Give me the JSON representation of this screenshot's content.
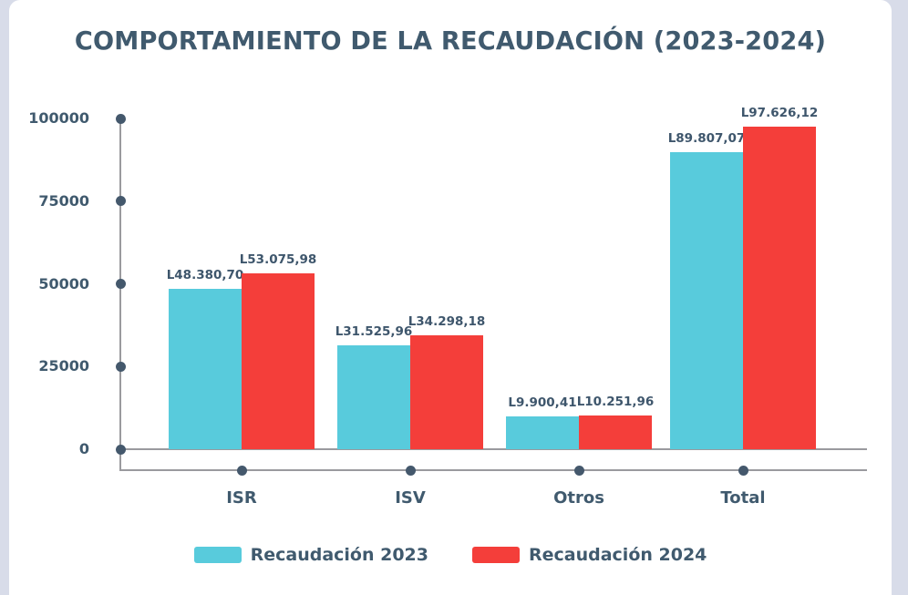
{
  "page": {
    "background": "#D8DCE9",
    "card_background": "#FFFFFF"
  },
  "chart_data": {
    "type": "bar",
    "title": "COMPORTAMIENTO DE LA RECAUDACIÓN (2023-2024)",
    "categories": [
      "ISR",
      "ISV",
      "Otros",
      "Total"
    ],
    "series": [
      {
        "name": "Recaudación 2023",
        "color": "#58CBDC",
        "values": [
          48380.7,
          31525.96,
          9900.41,
          89807.07
        ],
        "labels": [
          "L48.380,70",
          "L31.525,96",
          "L9.900,41",
          "L89.807,07"
        ]
      },
      {
        "name": "Recaudación 2024",
        "color": "#F43E3A",
        "values": [
          53075.98,
          34298.18,
          10251.96,
          97626.12
        ],
        "labels": [
          "L53.075,98",
          "L34.298,18",
          "L10.251,96",
          "L97.626,12"
        ]
      }
    ],
    "xlabel": "",
    "ylabel": "",
    "ylim": [
      0,
      100000
    ],
    "yticks": [
      {
        "value": 100000,
        "label": "100000"
      },
      {
        "value": 75000,
        "label": "75000"
      },
      {
        "value": 50000,
        "label": "50000"
      },
      {
        "value": 25000,
        "label": "25000"
      },
      {
        "value": 0,
        "label": "0"
      }
    ],
    "grid": false,
    "legend_position": "bottom",
    "text_color": "#405A6E",
    "axis_color": "#9A9A9E",
    "dot_color": "#44586C"
  }
}
